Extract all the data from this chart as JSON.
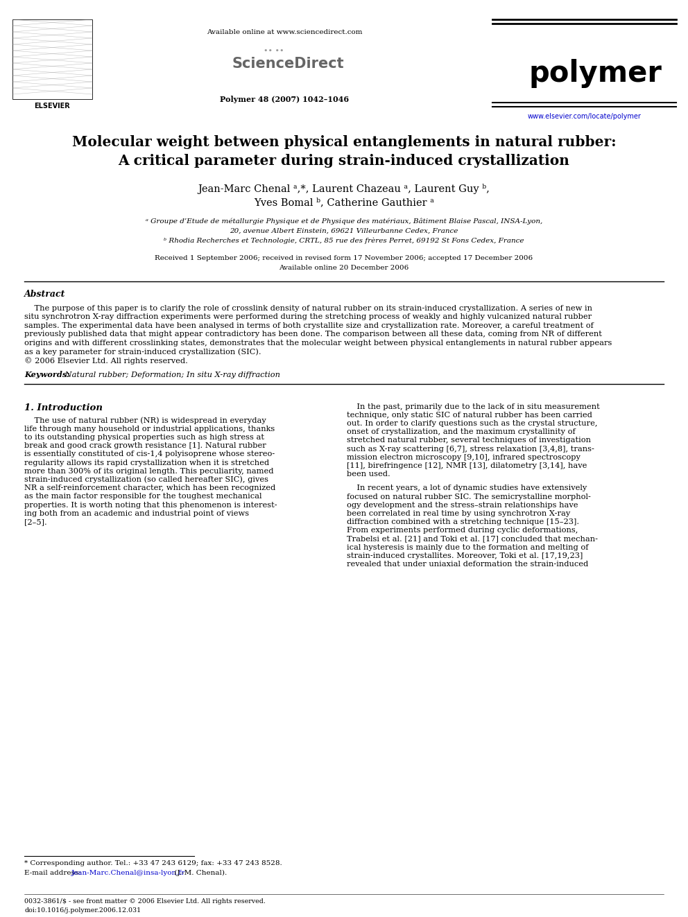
{
  "bg_color": "#ffffff",
  "title_line1": "Molecular weight between physical entanglements in natural rubber:",
  "title_line2": "A critical parameter during strain-induced crystallization",
  "authors_line1": "Jean-Marc Chenal ᵃ,*, Laurent Chazeau ᵃ, Laurent Guy ᵇ,",
  "authors_line2": "Yves Bomal ᵇ, Catherine Gauthier ᵃ",
  "affil_a": "ᵃ Groupe d’Etude de métallurgie Physique et de Physique des matériaux, Bâtiment Blaise Pascal, INSA-Lyon,",
  "affil_a2": "20, avenue Albert Einstein, 69621 Villeurbanne Cedex, France",
  "affil_b": "ᵇ Rhodia Recherches et Technologie, CRTL, 85 rue des frères Perret, 69192 St Fons Cedex, France",
  "received": "Received 1 September 2006; received in revised form 17 November 2006; accepted 17 December 2006",
  "available": "Available online 20 December 2006",
  "journal_info": "Polymer 48 (2007) 1042–1046",
  "available_online": "Available online at www.sciencedirect.com",
  "sciencedirect": "ScienceDirect",
  "polymer_text": "polymer",
  "url": "www.elsevier.com/locate/polymer",
  "abstract_title": "Abstract",
  "abstract_indent": "    The purpose of this paper is to clarify the role of crosslink density of natural rubber on its strain-induced crystallization. A series of new in",
  "abstract_lines": [
    "    The purpose of this paper is to clarify the role of crosslink density of natural rubber on its strain-induced crystallization. A series of new in",
    "situ synchrotron X-ray diffraction experiments were performed during the stretching process of weakly and highly vulcanized natural rubber",
    "samples. The experimental data have been analysed in terms of both crystallite size and crystallization rate. Moreover, a careful treatment of",
    "previously published data that might appear contradictory has been done. The comparison between all these data, coming from NR of different",
    "origins and with different crosslinking states, demonstrates that the molecular weight between physical entanglements in natural rubber appears",
    "as a key parameter for strain-induced crystallization (SIC).",
    "© 2006 Elsevier Ltd. All rights reserved."
  ],
  "keywords_label": "Keywords:",
  "keywords_text": " Natural rubber; Deformation; In situ X-ray diffraction",
  "section1_title": "1. Introduction",
  "col1_lines": [
    "    The use of natural rubber (NR) is widespread in everyday",
    "life through many household or industrial applications, thanks",
    "to its outstanding physical properties such as high stress at",
    "break and good crack growth resistance [1]. Natural rubber",
    "is essentially constituted of cis-1,4 polyisoprene whose stereo-",
    "regularity allows its rapid crystallization when it is stretched",
    "more than 300% of its original length. This peculiarity, named",
    "strain-induced crystallization (so called hereafter SIC), gives",
    "NR a self-reinforcement character, which has been recognized",
    "as the main factor responsible for the toughest mechanical",
    "properties. It is worth noting that this phenomenon is interest-",
    "ing both from an academic and industrial point of views",
    "[2–5]."
  ],
  "col2_lines_p1": [
    "    In the past, primarily due to the lack of in situ measurement",
    "technique, only static SIC of natural rubber has been carried",
    "out. In order to clarify questions such as the crystal structure,",
    "onset of crystallization, and the maximum crystallinity of",
    "stretched natural rubber, several techniques of investigation",
    "such as X-ray scattering [6,7], stress relaxation [3,4,8], trans-",
    "mission electron microscopy [9,10], infrared spectroscopy",
    "[11], birefringence [12], NMR [13], dilatometry [3,14], have",
    "been used."
  ],
  "col2_lines_p2": [
    "    In recent years, a lot of dynamic studies have extensively",
    "focused on natural rubber SIC. The semicrystalline morphol-",
    "ogy development and the stress–strain relationships have",
    "been correlated in real time by using synchrotron X-ray",
    "diffraction combined with a stretching technique [15–23].",
    "From experiments performed during cyclic deformations,",
    "Trabelsi et al. [21] and Toki et al. [17] concluded that mechan-",
    "ical hysteresis is mainly due to the formation and melting of",
    "strain-induced crystallites. Moreover, Toki et al. [17,19,23]",
    "revealed that under uniaxial deformation the strain-induced"
  ],
  "footnote_star": "* Corresponding author. Tel.: +33 47 243 6129; fax: +33 47 243 8528.",
  "footnote_email_label": "E-mail address: ",
  "footnote_email_link": "Jean-Marc.Chenal@insa-lyon.fr",
  "footnote_email_end": " (J.-M. Chenal).",
  "footer_issn": "0032-3861/$ - see front matter © 2006 Elsevier Ltd. All rights reserved.",
  "footer_doi": "doi:10.1016/j.polymer.2006.12.031",
  "elsevier_text": "ELSEVIER",
  "line_color": "#000000",
  "url_color": "#0000cc"
}
